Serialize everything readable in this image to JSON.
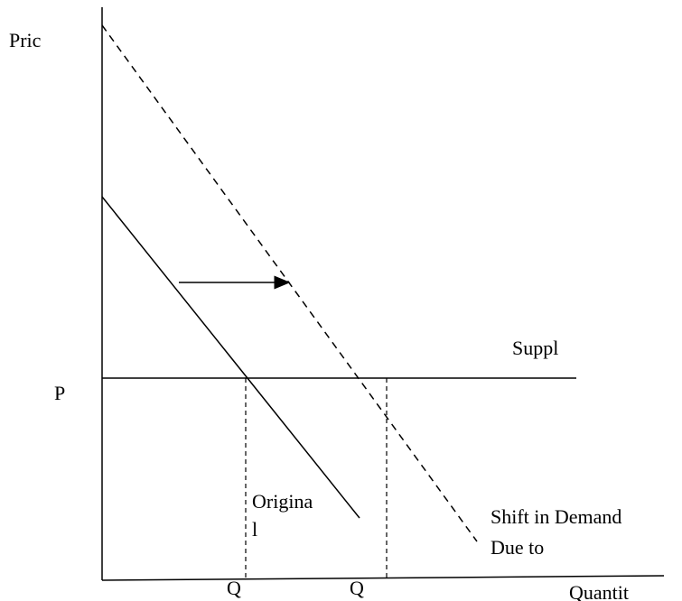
{
  "axes": {
    "y_label": "Pric",
    "x_label": "Quantit"
  },
  "labels": {
    "price": "P",
    "supply": "Suppl",
    "original_demand": [
      "Origina",
      "l"
    ],
    "quantity_1": "Q",
    "quantity_2": "Q",
    "shift_demand": [
      "Shift in Demand",
      "Due to"
    ]
  }
}
